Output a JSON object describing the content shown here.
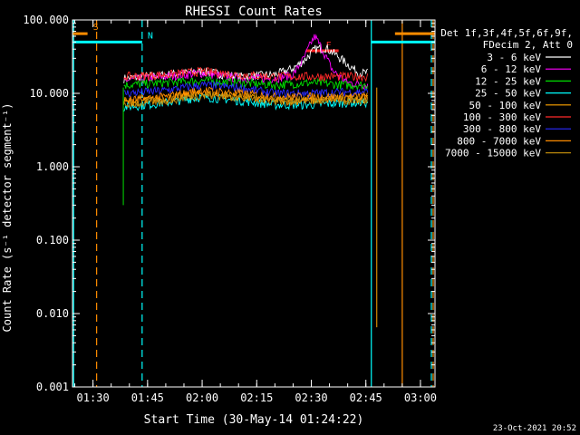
{
  "chart_data": {
    "type": "line",
    "title": "RHESSI Count Rates",
    "xlabel": "Start Time (30-May-14 01:24:22)",
    "ylabel": "Count Rate (s⁻¹ detector segment⁻¹)",
    "yscale": "log",
    "ylim": [
      0.001,
      100
    ],
    "xlim": [
      "01:24:22",
      "03:04:00"
    ],
    "x_ticks": [
      "01:30",
      "01:45",
      "02:00",
      "02:15",
      "02:30",
      "02:45",
      "03:00"
    ],
    "y_ticks": [
      "100.000",
      "10.000",
      "1.000",
      "0.100",
      "0.010",
      "0.001"
    ],
    "legend_title": [
      "Det 1f,3f,4f,5f,6f,9f,",
      "FDecim 2, Att 0"
    ],
    "legend_position": "right",
    "series": [
      {
        "name": "3 - 6 keV",
        "color": "#ffffff",
        "points": [
          [
            "01:38:30",
            16
          ],
          [
            "01:50:00",
            18
          ],
          [
            "02:00:00",
            20
          ],
          [
            "02:10:00",
            17
          ],
          [
            "02:20:00",
            18
          ],
          [
            "02:25:00",
            22
          ],
          [
            "02:28:00",
            28
          ],
          [
            "02:31:00",
            40
          ],
          [
            "02:34:00",
            42
          ],
          [
            "02:37:00",
            33
          ],
          [
            "02:40:00",
            25
          ],
          [
            "02:43:00",
            19
          ],
          [
            "02:45:30",
            19
          ]
        ]
      },
      {
        "name": "6 - 12 keV",
        "color": "#ff00ff",
        "points": [
          [
            "01:38:30",
            15
          ],
          [
            "01:50:00",
            17
          ],
          [
            "02:00:00",
            19
          ],
          [
            "02:10:00",
            16
          ],
          [
            "02:20:00",
            16
          ],
          [
            "02:25:00",
            18
          ],
          [
            "02:28:00",
            30
          ],
          [
            "02:30:00",
            50
          ],
          [
            "02:31:00",
            60
          ],
          [
            "02:33:00",
            40
          ],
          [
            "02:36:00",
            20
          ],
          [
            "02:40:00",
            14
          ],
          [
            "02:45:30",
            13
          ]
        ]
      },
      {
        "name": "12 - 25 keV",
        "color": "#00e000",
        "points": [
          [
            "01:38:30",
            13
          ],
          [
            "01:50:00",
            14
          ],
          [
            "02:00:00",
            15
          ],
          [
            "02:10:00",
            14
          ],
          [
            "02:20:00",
            13
          ],
          [
            "02:30:00",
            14
          ],
          [
            "02:40:00",
            13
          ],
          [
            "02:45:30",
            13
          ]
        ]
      },
      {
        "name": "25 - 50 keV",
        "color": "#00ffff",
        "points": [
          [
            "01:38:30",
            6.5
          ],
          [
            "01:50:00",
            7.5
          ],
          [
            "02:00:00",
            9
          ],
          [
            "02:10:00",
            8
          ],
          [
            "02:20:00",
            7
          ],
          [
            "02:30:00",
            7
          ],
          [
            "02:40:00",
            7.5
          ],
          [
            "02:45:30",
            7.5
          ]
        ]
      },
      {
        "name": "50 - 100 keV",
        "color": "#ffa500",
        "points": [
          [
            "01:38:30",
            7.5
          ],
          [
            "01:50:00",
            8.5
          ],
          [
            "02:00:00",
            10
          ],
          [
            "02:10:00",
            9
          ],
          [
            "02:20:00",
            8
          ],
          [
            "02:30:00",
            8
          ],
          [
            "02:40:00",
            8.5
          ],
          [
            "02:45:30",
            8.5
          ]
        ]
      },
      {
        "name": "100 - 300 keV",
        "color": "#ff2a2a",
        "points": [
          [
            "01:38:30",
            17
          ],
          [
            "01:50:00",
            18
          ],
          [
            "02:00:00",
            20
          ],
          [
            "02:10:00",
            18
          ],
          [
            "02:20:00",
            17
          ],
          [
            "02:30:00",
            17
          ],
          [
            "02:40:00",
            17
          ],
          [
            "02:45:30",
            17
          ]
        ]
      },
      {
        "name": "300 - 800 keV",
        "color": "#2a2aff",
        "points": [
          [
            "01:38:30",
            10
          ],
          [
            "01:50:00",
            11
          ],
          [
            "02:00:00",
            13
          ],
          [
            "02:10:00",
            12
          ],
          [
            "02:20:00",
            10
          ],
          [
            "02:30:00",
            10
          ],
          [
            "02:40:00",
            10.5
          ],
          [
            "02:45:30",
            10.5
          ]
        ]
      },
      {
        "name": "800 - 7000 keV",
        "color": "#ff8c00",
        "points": [
          [
            "01:38:30",
            8
          ],
          [
            "01:50:00",
            9
          ],
          [
            "02:00:00",
            11
          ],
          [
            "02:10:00",
            10
          ],
          [
            "02:20:00",
            9
          ],
          [
            "02:30:00",
            9
          ],
          [
            "02:40:00",
            9
          ],
          [
            "02:45:30",
            9
          ]
        ]
      },
      {
        "name": "7000 - 15000 keV",
        "color": "#b8860b",
        "points": [
          [
            "01:38:30",
            7
          ],
          [
            "01:50:00",
            8
          ],
          [
            "02:00:00",
            9.5
          ],
          [
            "02:10:00",
            9
          ],
          [
            "02:20:00",
            8
          ],
          [
            "02:30:00",
            8
          ],
          [
            "02:40:00",
            8
          ],
          [
            "02:45:30",
            8
          ]
        ]
      }
    ],
    "annotations": [
      {
        "label": "S",
        "color": "#ff8c00",
        "segments": [
          [
            "01:24:22",
            "01:28:30"
          ],
          [
            "02:53:00",
            "03:04:00"
          ]
        ],
        "y": 65
      },
      {
        "label": "N",
        "color": "#00ffff",
        "segments": [
          [
            "01:24:22",
            "01:43:30"
          ],
          [
            "02:46:30",
            "03:04:00"
          ]
        ],
        "y": 50
      },
      {
        "label": "F",
        "color": "#ff2222",
        "segments": [
          [
            "02:28:30",
            "02:37:30"
          ]
        ],
        "y": 38
      }
    ],
    "vertical_lines": [
      {
        "time": "01:24:40",
        "color": "#00ffff",
        "style": "solid"
      },
      {
        "time": "01:31:00",
        "color": "#ff8c00",
        "style": "dashed"
      },
      {
        "time": "01:43:30",
        "color": "#00ffff",
        "style": "dashed"
      },
      {
        "time": "02:46:30",
        "color": "#00ffff",
        "style": "solid"
      },
      {
        "time": "02:55:00",
        "color": "#ff8c00",
        "style": "solid"
      },
      {
        "time": "03:03:00",
        "color": "#00ffff",
        "style": "dashed"
      },
      {
        "time": "03:03:30",
        "color": "#ff8c00",
        "style": "dashed"
      }
    ],
    "drops": [
      {
        "time": "01:38:20",
        "color": "#00e000",
        "to": 0.3
      },
      {
        "time": "02:48:00",
        "color": "#ffa500",
        "to": 0.0065
      }
    ]
  },
  "footer_timestamp": "23-Oct-2021 20:52"
}
